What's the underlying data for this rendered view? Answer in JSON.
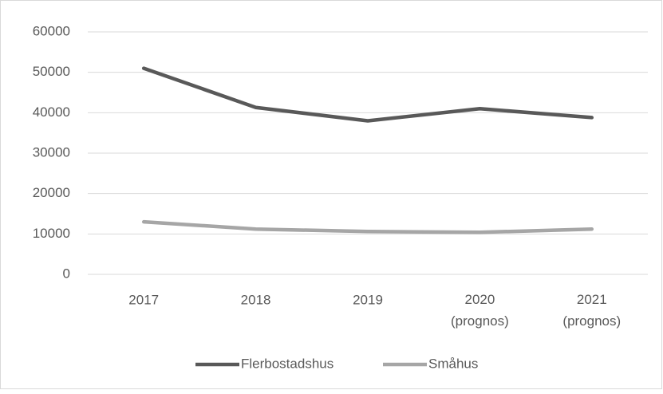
{
  "chart_data": {
    "type": "line",
    "categories": [
      "2017",
      "2018",
      "2019",
      "2020 (prognos)",
      "2021 (prognos)"
    ],
    "series": [
      {
        "name": "Flerbostadshus",
        "color": "#595959",
        "values": [
          51000,
          41300,
          38000,
          41000,
          38800
        ]
      },
      {
        "name": "Småhus",
        "color": "#a6a6a6",
        "values": [
          13000,
          11200,
          10600,
          10400,
          11200
        ]
      }
    ],
    "ylim": [
      0,
      60000
    ],
    "yticks": [
      0,
      10000,
      20000,
      30000,
      40000,
      50000,
      60000
    ],
    "grid": true,
    "legend": "bottom"
  }
}
